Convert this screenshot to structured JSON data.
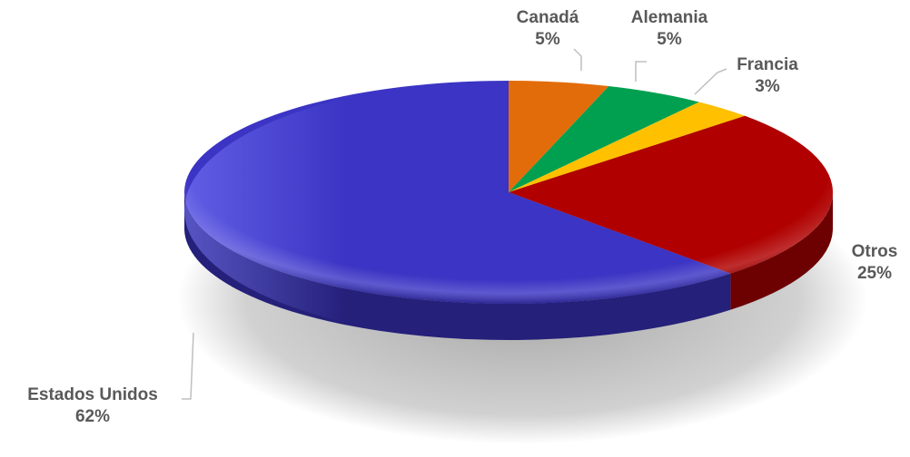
{
  "chart_data": {
    "type": "pie",
    "style": "3d",
    "slices": [
      {
        "label": "Canadá",
        "value": 5,
        "display": "5%",
        "color": "#e36c0a"
      },
      {
        "label": "Alemania",
        "value": 5,
        "display": "5%",
        "color": "#00a050"
      },
      {
        "label": "Francia",
        "value": 3,
        "display": "3%",
        "color": "#ffc000"
      },
      {
        "label": "Otros",
        "value": 25,
        "display": "25%",
        "color": "#b00000"
      },
      {
        "label": "Estados Unidos",
        "value": 62,
        "display": "62%",
        "color": "#3b34c4"
      }
    ],
    "label_color": "#595959",
    "legend": "none"
  }
}
